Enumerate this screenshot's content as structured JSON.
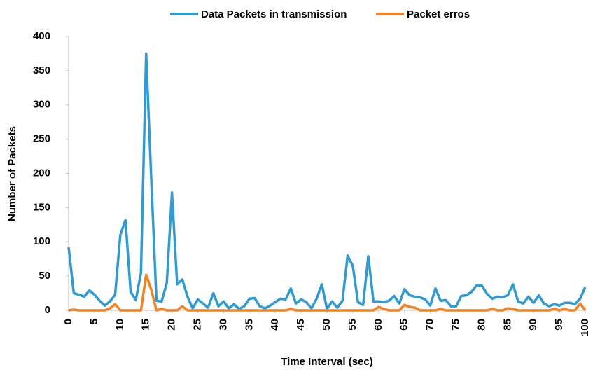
{
  "chart_data": {
    "type": "line",
    "legend": "top",
    "xlabel": "Time Interval (sec)",
    "ylabel": "Number of Packets",
    "x": [
      0,
      1,
      2,
      3,
      4,
      5,
      6,
      7,
      8,
      9,
      10,
      11,
      12,
      13,
      14,
      15,
      16,
      17,
      18,
      19,
      20,
      21,
      22,
      23,
      24,
      25,
      26,
      27,
      28,
      29,
      30,
      31,
      32,
      33,
      34,
      35,
      36,
      37,
      38,
      39,
      40,
      41,
      42,
      43,
      44,
      45,
      46,
      47,
      48,
      49,
      50,
      51,
      52,
      53,
      54,
      55,
      56,
      57,
      58,
      59,
      60,
      61,
      62,
      63,
      64,
      65,
      66,
      67,
      68,
      69,
      70,
      71,
      72,
      73,
      74,
      75,
      76,
      77,
      78,
      79,
      80,
      81,
      82,
      83,
      84,
      85,
      86,
      87,
      88,
      89,
      90,
      91,
      92,
      93,
      94,
      95,
      96,
      97,
      98,
      99,
      100
    ],
    "series": [
      {
        "name": "Data Packets in transmission",
        "color": "#2e9bd6",
        "values": [
          92,
          25,
          23,
          20,
          29,
          23,
          14,
          7,
          13,
          23,
          110,
          132,
          27,
          15,
          55,
          375,
          190,
          14,
          13,
          40,
          172,
          38,
          45,
          20,
          3,
          16,
          10,
          4,
          25,
          6,
          13,
          3,
          9,
          2,
          6,
          17,
          18,
          6,
          3,
          7,
          12,
          17,
          16,
          32,
          10,
          16,
          12,
          3,
          17,
          38,
          2,
          13,
          4,
          14,
          80,
          65,
          12,
          8,
          79,
          13,
          13,
          12,
          14,
          21,
          10,
          31,
          22,
          20,
          19,
          16,
          7,
          32,
          14,
          15,
          6,
          6,
          21,
          22,
          27,
          37,
          36,
          24,
          17,
          20,
          19,
          22,
          38,
          13,
          10,
          20,
          11,
          22,
          10,
          6,
          9,
          7,
          11,
          11,
          9,
          17,
          34
        ]
      },
      {
        "name": "Packet erros",
        "color": "#f58220",
        "values": [
          0,
          1,
          0,
          0,
          0,
          0,
          0,
          0,
          3,
          9,
          0,
          0,
          0,
          0,
          0,
          52,
          30,
          0,
          2,
          0,
          0,
          0,
          6,
          0,
          0,
          0,
          0,
          0,
          0,
          0,
          0,
          0,
          0,
          0,
          0,
          0,
          0,
          0,
          0,
          0,
          0,
          0,
          0,
          2,
          0,
          0,
          0,
          0,
          0,
          0,
          0,
          0,
          0,
          0,
          0,
          0,
          0,
          0,
          0,
          0,
          5,
          2,
          0,
          0,
          0,
          8,
          5,
          4,
          0,
          0,
          0,
          0,
          2,
          0,
          0,
          0,
          0,
          0,
          0,
          0,
          0,
          0,
          2,
          0,
          0,
          3,
          2,
          0,
          0,
          0,
          0,
          0,
          0,
          0,
          2,
          0,
          2,
          0,
          0,
          10,
          0
        ]
      }
    ],
    "xlim": [
      0,
      100
    ],
    "xticks": [
      0,
      5,
      10,
      15,
      20,
      25,
      30,
      35,
      40,
      45,
      50,
      55,
      60,
      65,
      70,
      75,
      80,
      85,
      90,
      95,
      100
    ],
    "ylim": [
      0,
      400
    ],
    "yticks": [
      0,
      50,
      100,
      150,
      200,
      250,
      300,
      350,
      400
    ],
    "grid": false
  }
}
